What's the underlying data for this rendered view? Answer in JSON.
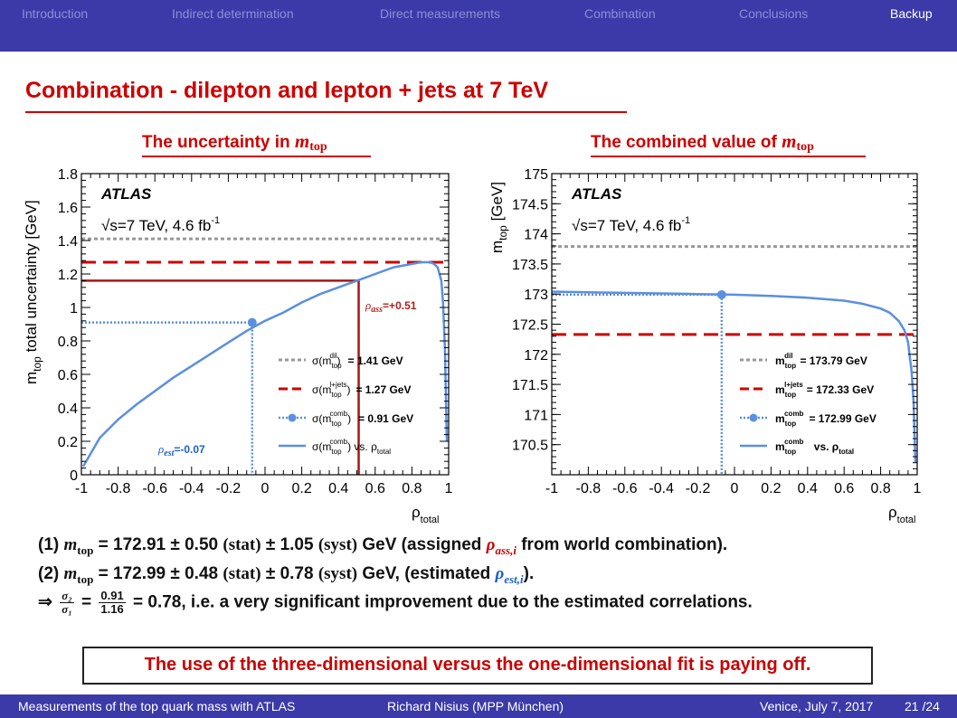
{
  "nav": {
    "items": [
      "Introduction",
      "Indirect determination",
      "Direct measurements",
      "Combination",
      "Conclusions",
      "Backup"
    ],
    "active": "Backup"
  },
  "slide_title": "Combination - dilepton and lepton + jets at 7 TeV",
  "left_panel": {
    "heading": "The uncertainty in",
    "heading_m": "m",
    "heading_sub": "top"
  },
  "right_panel": {
    "heading": "The combined value of",
    "heading_m": "m",
    "heading_sub": "top"
  },
  "chart_data": [
    {
      "type": "line",
      "experiment": "ATLAS",
      "energy_label": "√s=7 TeV, 4.6 fb",
      "energy_sup": "-1",
      "ylabel": "m",
      "ylabel_sub": "top",
      "ylabel_rest": " total uncertainty [GeV]",
      "xlabel": "ρ",
      "xlabel_sub": "total",
      "xlim": [
        -1,
        1
      ],
      "ylim": [
        0,
        1.8
      ],
      "xticks": [
        "-1",
        "-0.8",
        "-0.6",
        "-0.4",
        "-0.2",
        "0",
        "0.2",
        "0.4",
        "0.6",
        "0.8",
        "1"
      ],
      "yticks": [
        "0",
        "0.2",
        "0.4",
        "0.6",
        "0.8",
        "1",
        "1.2",
        "1.4",
        "1.6",
        "1.8"
      ],
      "horizontal_lines": [
        {
          "name": "σ(m_top^dil)",
          "value": 1.41,
          "value_label": "= 1.41 GeV",
          "color": "#999999",
          "style": "dotted"
        },
        {
          "name": "σ(m_top^l+jets)",
          "value": 1.27,
          "value_label": "= 1.27 GeV",
          "color": "#cc0000",
          "style": "dashed"
        }
      ],
      "combined_point": {
        "x": -0.07,
        "y": 0.91,
        "value_label": "= 0.91 GeV",
        "color": "#5b8fe0"
      },
      "assigned_point": {
        "x": 0.51,
        "y": 1.16,
        "color": "#a01818"
      },
      "curve": {
        "name": "σ(m_top^comb) vs. ρ_total",
        "color": "#5b8fe0",
        "x": [
          -0.99,
          -0.9,
          -0.8,
          -0.7,
          -0.6,
          -0.5,
          -0.4,
          -0.3,
          -0.2,
          -0.1,
          0,
          0.1,
          0.2,
          0.3,
          0.4,
          0.5,
          0.6,
          0.7,
          0.8,
          0.85,
          0.9,
          0.92,
          0.94,
          0.96,
          0.97,
          0.98,
          0.99
        ],
        "y": [
          0.05,
          0.22,
          0.33,
          0.42,
          0.5,
          0.58,
          0.65,
          0.72,
          0.79,
          0.86,
          0.92,
          0.97,
          1.03,
          1.08,
          1.12,
          1.16,
          1.2,
          1.24,
          1.26,
          1.27,
          1.27,
          1.26,
          1.24,
          1.16,
          1.02,
          0.75,
          0.2
        ]
      },
      "annotations": {
        "rho_ass": "ρ",
        "rho_ass_sub": "ass",
        "rho_ass_value": "=+0.51",
        "rho_est": "ρ",
        "rho_est_sub": "est",
        "rho_est_value": "=-0.07"
      }
    },
    {
      "type": "line",
      "experiment": "ATLAS",
      "energy_label": "√s=7 TeV, 4.6 fb",
      "energy_sup": "-1",
      "ylabel": "m",
      "ylabel_sub": "top",
      "ylabel_rest": " [GeV]",
      "xlabel": "ρ",
      "xlabel_sub": "total",
      "xlim": [
        -1,
        1
      ],
      "ylim": [
        170,
        175
      ],
      "xticks": [
        "-1",
        "-0.8",
        "-0.6",
        "-0.4",
        "-0.2",
        "0",
        "0.2",
        "0.4",
        "0.6",
        "0.8",
        "1"
      ],
      "yticks": [
        "170.5",
        "171",
        "171.5",
        "172",
        "172.5",
        "173",
        "173.5",
        "174",
        "174.5",
        "175"
      ],
      "horizontal_lines": [
        {
          "name": "m_top^dil",
          "value": 173.79,
          "value_label": "= 173.79 GeV",
          "color": "#999999",
          "style": "dotted"
        },
        {
          "name": "m_top^l+jets",
          "value": 172.33,
          "value_label": "= 172.33 GeV",
          "color": "#cc0000",
          "style": "dashed"
        }
      ],
      "combined_point": {
        "x": -0.07,
        "y": 172.99,
        "value_label": "= 172.99 GeV",
        "color": "#5b8fe0"
      },
      "curve": {
        "name": "m_top^comb vs. ρ_total",
        "color": "#5b8fe0",
        "x": [
          -1,
          -0.8,
          -0.6,
          -0.4,
          -0.2,
          0,
          0.2,
          0.4,
          0.6,
          0.7,
          0.8,
          0.85,
          0.9,
          0.93,
          0.95,
          0.97,
          0.98,
          0.99
        ],
        "y": [
          173.04,
          173.03,
          173.02,
          173.01,
          173.0,
          172.99,
          172.97,
          172.94,
          172.89,
          172.84,
          172.76,
          172.69,
          172.55,
          172.4,
          172.2,
          171.7,
          171.2,
          170.2
        ]
      }
    }
  ],
  "legend_left": [
    {
      "text": "σ(m",
      "sub": "top",
      "sup": "dil",
      "close": ")",
      "value": "= 1.41 GeV"
    },
    {
      "text": "σ(m",
      "sub": "top",
      "sup": "l+jets",
      "close": ")",
      "value": "= 1.27 GeV"
    },
    {
      "text": "σ(m",
      "sub": "top",
      "sup": "comb",
      "close": ")",
      "value": "= 0.91 GeV"
    },
    {
      "text": "σ(m",
      "sub": "top",
      "sup": "comb",
      "close": ") vs. ρ",
      "value_sub": "total"
    }
  ],
  "legend_right": [
    {
      "text": "m",
      "sub": "top",
      "sup": "dil",
      "value": "= 173.79 GeV"
    },
    {
      "text": "m",
      "sub": "top",
      "sup": "l+jets",
      "value": "= 172.33 GeV"
    },
    {
      "text": "m",
      "sub": "top",
      "sup": "comb",
      "value": "= 172.99 GeV"
    },
    {
      "text": "m",
      "sub": "top",
      "sup": "comb",
      "value": " vs.  ρ",
      "value_sub": "total"
    }
  ],
  "equations": {
    "line1": {
      "label": "(1)",
      "m": "m",
      "sub": "top",
      "rest1": " = 172.91 ± 0.50 ",
      "stat": "(stat)",
      "rest2": " ± 1.05 ",
      "syst": "(syst)",
      "rest3": " GeV (assigned ",
      "rho": "ρ",
      "rho_sub": "ass,i",
      "rest4": " from world combination)."
    },
    "line2": {
      "label": "(2)",
      "m": "m",
      "sub": "top",
      "rest1": " = 172.99 ± 0.48 ",
      "stat": "(stat)",
      "rest2": " ± 0.78 ",
      "syst": "(syst)",
      "rest3": " GeV, (estimated ",
      "rho": "ρ",
      "rho_sub": "est,i",
      "rest4": ")."
    },
    "line3": {
      "arrow": "⇒",
      "sig_num": "σ₂",
      "sig_den": "σ₁",
      "eq": "=",
      "num": "0.91",
      "den": "1.16",
      "rest": " = 0.78, i.e. a very significant improvement due to the estimated correlations."
    }
  },
  "conclusion": "The use of the three-dimensional versus the one-dimensional fit is paying off.",
  "footer": {
    "talk": "Measurements of the top quark mass with ATLAS",
    "author": "Richard Nisius  (MPP München)",
    "venue": "Venice, July 7, 2017",
    "page": "21 /24"
  }
}
